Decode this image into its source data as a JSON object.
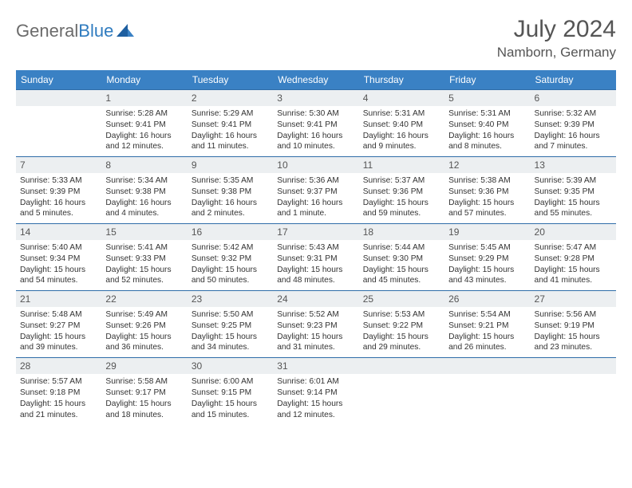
{
  "logo": {
    "text1": "General",
    "text2": "Blue"
  },
  "title": "July 2024",
  "subtitle": "Namborn, Germany",
  "colors": {
    "header_bg": "#3a81c4",
    "header_text": "#ffffff",
    "row_border": "#2f6da8",
    "daynum_bg": "#eceff1",
    "logo_gray": "#6b6b6b",
    "logo_blue": "#2f7bbf"
  },
  "weekdays": [
    "Sunday",
    "Monday",
    "Tuesday",
    "Wednesday",
    "Thursday",
    "Friday",
    "Saturday"
  ],
  "weeks": [
    [
      {
        "n": "",
        "l1": "",
        "l2": "",
        "l3": "",
        "l4": ""
      },
      {
        "n": "1",
        "l1": "Sunrise: 5:28 AM",
        "l2": "Sunset: 9:41 PM",
        "l3": "Daylight: 16 hours",
        "l4": "and 12 minutes."
      },
      {
        "n": "2",
        "l1": "Sunrise: 5:29 AM",
        "l2": "Sunset: 9:41 PM",
        "l3": "Daylight: 16 hours",
        "l4": "and 11 minutes."
      },
      {
        "n": "3",
        "l1": "Sunrise: 5:30 AM",
        "l2": "Sunset: 9:41 PM",
        "l3": "Daylight: 16 hours",
        "l4": "and 10 minutes."
      },
      {
        "n": "4",
        "l1": "Sunrise: 5:31 AM",
        "l2": "Sunset: 9:40 PM",
        "l3": "Daylight: 16 hours",
        "l4": "and 9 minutes."
      },
      {
        "n": "5",
        "l1": "Sunrise: 5:31 AM",
        "l2": "Sunset: 9:40 PM",
        "l3": "Daylight: 16 hours",
        "l4": "and 8 minutes."
      },
      {
        "n": "6",
        "l1": "Sunrise: 5:32 AM",
        "l2": "Sunset: 9:39 PM",
        "l3": "Daylight: 16 hours",
        "l4": "and 7 minutes."
      }
    ],
    [
      {
        "n": "7",
        "l1": "Sunrise: 5:33 AM",
        "l2": "Sunset: 9:39 PM",
        "l3": "Daylight: 16 hours",
        "l4": "and 5 minutes."
      },
      {
        "n": "8",
        "l1": "Sunrise: 5:34 AM",
        "l2": "Sunset: 9:38 PM",
        "l3": "Daylight: 16 hours",
        "l4": "and 4 minutes."
      },
      {
        "n": "9",
        "l1": "Sunrise: 5:35 AM",
        "l2": "Sunset: 9:38 PM",
        "l3": "Daylight: 16 hours",
        "l4": "and 2 minutes."
      },
      {
        "n": "10",
        "l1": "Sunrise: 5:36 AM",
        "l2": "Sunset: 9:37 PM",
        "l3": "Daylight: 16 hours",
        "l4": "and 1 minute."
      },
      {
        "n": "11",
        "l1": "Sunrise: 5:37 AM",
        "l2": "Sunset: 9:36 PM",
        "l3": "Daylight: 15 hours",
        "l4": "and 59 minutes."
      },
      {
        "n": "12",
        "l1": "Sunrise: 5:38 AM",
        "l2": "Sunset: 9:36 PM",
        "l3": "Daylight: 15 hours",
        "l4": "and 57 minutes."
      },
      {
        "n": "13",
        "l1": "Sunrise: 5:39 AM",
        "l2": "Sunset: 9:35 PM",
        "l3": "Daylight: 15 hours",
        "l4": "and 55 minutes."
      }
    ],
    [
      {
        "n": "14",
        "l1": "Sunrise: 5:40 AM",
        "l2": "Sunset: 9:34 PM",
        "l3": "Daylight: 15 hours",
        "l4": "and 54 minutes."
      },
      {
        "n": "15",
        "l1": "Sunrise: 5:41 AM",
        "l2": "Sunset: 9:33 PM",
        "l3": "Daylight: 15 hours",
        "l4": "and 52 minutes."
      },
      {
        "n": "16",
        "l1": "Sunrise: 5:42 AM",
        "l2": "Sunset: 9:32 PM",
        "l3": "Daylight: 15 hours",
        "l4": "and 50 minutes."
      },
      {
        "n": "17",
        "l1": "Sunrise: 5:43 AM",
        "l2": "Sunset: 9:31 PM",
        "l3": "Daylight: 15 hours",
        "l4": "and 48 minutes."
      },
      {
        "n": "18",
        "l1": "Sunrise: 5:44 AM",
        "l2": "Sunset: 9:30 PM",
        "l3": "Daylight: 15 hours",
        "l4": "and 45 minutes."
      },
      {
        "n": "19",
        "l1": "Sunrise: 5:45 AM",
        "l2": "Sunset: 9:29 PM",
        "l3": "Daylight: 15 hours",
        "l4": "and 43 minutes."
      },
      {
        "n": "20",
        "l1": "Sunrise: 5:47 AM",
        "l2": "Sunset: 9:28 PM",
        "l3": "Daylight: 15 hours",
        "l4": "and 41 minutes."
      }
    ],
    [
      {
        "n": "21",
        "l1": "Sunrise: 5:48 AM",
        "l2": "Sunset: 9:27 PM",
        "l3": "Daylight: 15 hours",
        "l4": "and 39 minutes."
      },
      {
        "n": "22",
        "l1": "Sunrise: 5:49 AM",
        "l2": "Sunset: 9:26 PM",
        "l3": "Daylight: 15 hours",
        "l4": "and 36 minutes."
      },
      {
        "n": "23",
        "l1": "Sunrise: 5:50 AM",
        "l2": "Sunset: 9:25 PM",
        "l3": "Daylight: 15 hours",
        "l4": "and 34 minutes."
      },
      {
        "n": "24",
        "l1": "Sunrise: 5:52 AM",
        "l2": "Sunset: 9:23 PM",
        "l3": "Daylight: 15 hours",
        "l4": "and 31 minutes."
      },
      {
        "n": "25",
        "l1": "Sunrise: 5:53 AM",
        "l2": "Sunset: 9:22 PM",
        "l3": "Daylight: 15 hours",
        "l4": "and 29 minutes."
      },
      {
        "n": "26",
        "l1": "Sunrise: 5:54 AM",
        "l2": "Sunset: 9:21 PM",
        "l3": "Daylight: 15 hours",
        "l4": "and 26 minutes."
      },
      {
        "n": "27",
        "l1": "Sunrise: 5:56 AM",
        "l2": "Sunset: 9:19 PM",
        "l3": "Daylight: 15 hours",
        "l4": "and 23 minutes."
      }
    ],
    [
      {
        "n": "28",
        "l1": "Sunrise: 5:57 AM",
        "l2": "Sunset: 9:18 PM",
        "l3": "Daylight: 15 hours",
        "l4": "and 21 minutes."
      },
      {
        "n": "29",
        "l1": "Sunrise: 5:58 AM",
        "l2": "Sunset: 9:17 PM",
        "l3": "Daylight: 15 hours",
        "l4": "and 18 minutes."
      },
      {
        "n": "30",
        "l1": "Sunrise: 6:00 AM",
        "l2": "Sunset: 9:15 PM",
        "l3": "Daylight: 15 hours",
        "l4": "and 15 minutes."
      },
      {
        "n": "31",
        "l1": "Sunrise: 6:01 AM",
        "l2": "Sunset: 9:14 PM",
        "l3": "Daylight: 15 hours",
        "l4": "and 12 minutes."
      },
      {
        "n": "",
        "l1": "",
        "l2": "",
        "l3": "",
        "l4": ""
      },
      {
        "n": "",
        "l1": "",
        "l2": "",
        "l3": "",
        "l4": ""
      },
      {
        "n": "",
        "l1": "",
        "l2": "",
        "l3": "",
        "l4": ""
      }
    ]
  ]
}
